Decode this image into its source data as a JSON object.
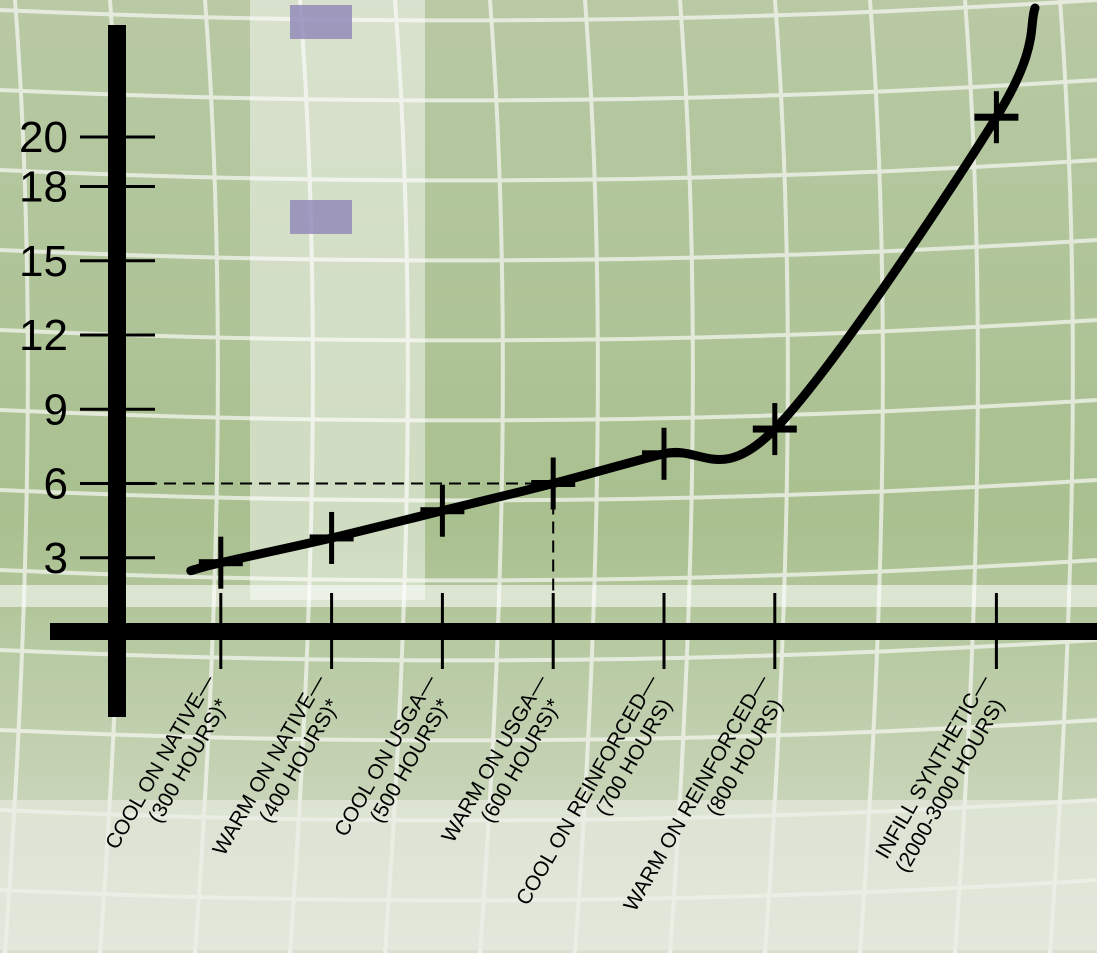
{
  "chart_data": {
    "type": "line",
    "title": "",
    "xlabel": "",
    "ylabel": "",
    "ylim": [
      0,
      22
    ],
    "yticks": [
      3,
      6,
      9,
      12,
      15,
      18,
      20
    ],
    "grid": false,
    "legend": "none",
    "colors": {
      "line": "#000000",
      "axis": "#000000",
      "turf": "#9fb884",
      "net": "#f4f6f0"
    },
    "categories": [
      {
        "line1": "COOL ON NATIVE",
        "line2": "(300 HOURS)*"
      },
      {
        "line1": "WARM ON NATIVE",
        "line2": "(400 HOURS)*"
      },
      {
        "line1": "COOL ON USGA",
        "line2": "(500 HOURS)*"
      },
      {
        "line1": "WARM ON USGA",
        "line2": "(600 HOURS)*"
      },
      {
        "line1": "COOL ON REINFORCED",
        "line2": "(700 HOURS)"
      },
      {
        "line1": "WARM ON REINFORCED",
        "line2": "(800 HOURS)"
      },
      {
        "line1": "INFILL SYNTHETIC",
        "line2": "(2000-3000 HOURS)"
      }
    ],
    "category_positions": [
      1,
      2,
      3,
      4,
      5,
      6,
      8
    ],
    "values": [
      2.8,
      3.8,
      4.9,
      6.0,
      7.2,
      8.2,
      20.8
    ],
    "reference": {
      "category_index": 3,
      "value": 6
    }
  }
}
